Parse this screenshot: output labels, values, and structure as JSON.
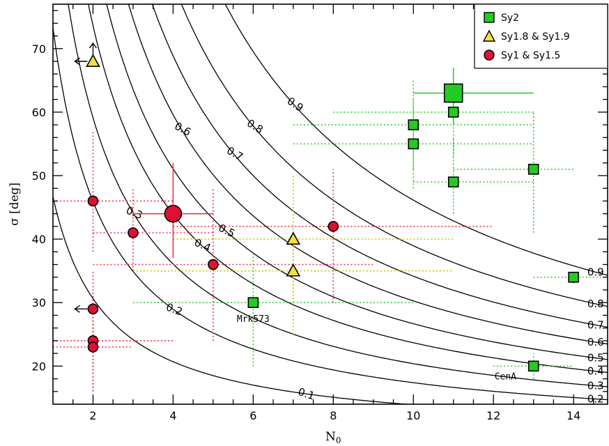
{
  "chart_data": {
    "type": "scatter",
    "title": "",
    "xlabel": "N",
    "xlabel_sub": "0",
    "ylabel": "σ [deg]",
    "xlim": [
      1,
      14.85
    ],
    "ylim": [
      14,
      77
    ],
    "xticks": [
      2,
      4,
      6,
      8,
      10,
      12,
      14
    ],
    "yticks": [
      20,
      30,
      40,
      50,
      60,
      70
    ],
    "grid": false,
    "legend_position": "top-right",
    "series": [
      {
        "name": "Sy2",
        "marker": "square",
        "color": "#22cc22",
        "errcolor": "#33cc33",
        "points": [
          {
            "x": 10,
            "y": 58,
            "xerr": [
              7,
              13
            ],
            "yerr": [
              51,
              65
            ]
          },
          {
            "x": 10,
            "y": 55,
            "xerr": [
              7,
              13
            ],
            "yerr": [
              48,
              62
            ]
          },
          {
            "x": 11,
            "y": 60,
            "xerr": [
              8,
              13
            ],
            "yerr": [
              53,
              67
            ]
          },
          {
            "x": 11,
            "y": 49,
            "xerr": [
              10,
              13
            ],
            "yerr": [
              44,
              56
            ]
          },
          {
            "x": 13,
            "y": 51,
            "xerr": [
              11,
              14
            ],
            "yerr": [
              41,
              60
            ]
          },
          {
            "x": 14,
            "y": 34,
            "xerr": [
              13,
              14.85
            ],
            "yerr": [
              33,
              35
            ]
          },
          {
            "x": 6,
            "y": 30,
            "xerr": [
              3,
              10
            ],
            "yerr": [
              20,
              38
            ]
          },
          {
            "x": 13,
            "y": 20,
            "xerr": [
              12,
              14
            ],
            "yerr": [
              18,
              22
            ]
          }
        ],
        "highlight": {
          "x": 11,
          "y": 63,
          "xerr": [
            10,
            13
          ],
          "yerr": [
            58,
            67
          ]
        }
      },
      {
        "name": "Sy1.8 & Sy1.9",
        "marker": "triangle",
        "color": "#f0e040",
        "errcolor": "#c8c800",
        "points": [
          {
            "x": 2,
            "y": 68,
            "limit": "upper-left"
          },
          {
            "x": 7,
            "y": 40,
            "xerr": [
              4,
              11
            ],
            "yerr": [
              30,
              50
            ]
          },
          {
            "x": 7,
            "y": 35,
            "xerr": [
              3,
              11
            ],
            "yerr": [
              25,
              42
            ]
          }
        ]
      },
      {
        "name": "Sy1 & Sy1.5",
        "marker": "circle",
        "color": "#dd1133",
        "errcolor": "#ee3344",
        "points": [
          {
            "x": 2,
            "y": 46,
            "xerr": [
              1,
              4
            ],
            "yerr": [
              38,
              57
            ]
          },
          {
            "x": 3,
            "y": 41,
            "xerr": [
              2,
              5
            ],
            "yerr": [
              35,
              48
            ]
          },
          {
            "x": 5,
            "y": 36,
            "xerr": [
              2,
              9
            ],
            "yerr": [
              24,
              48
            ]
          },
          {
            "x": 8,
            "y": 42,
            "xerr": [
              4,
              12
            ],
            "yerr": [
              30,
              51
            ]
          },
          {
            "x": 2,
            "y": 29,
            "limit": "left",
            "yerr": [
              22,
              35
            ]
          },
          {
            "x": 2,
            "y": 24,
            "xerr": [
              1,
              4
            ],
            "yerr": [
              16,
              32
            ]
          },
          {
            "x": 2,
            "y": 23,
            "xerr": [
              1,
              3
            ],
            "yerr": [
              16,
              30
            ]
          }
        ],
        "highlight": {
          "x": 4,
          "y": 44,
          "xerr": [
            3,
            5
          ],
          "yerr": [
            37,
            52
          ]
        }
      }
    ],
    "contours": [
      {
        "label": "0.1",
        "k": 8.2
      },
      {
        "label": "0.2",
        "k": 14
      },
      {
        "label": "0.3",
        "k": 19
      },
      {
        "label": "0.4",
        "k": 24.5
      },
      {
        "label": "0.5",
        "k": 29.5
      },
      {
        "label": "0.6",
        "k": 35.5
      },
      {
        "label": "0.7",
        "k": 42
      },
      {
        "label": "0.8",
        "k": 50
      },
      {
        "label": "0.9",
        "k": 62
      }
    ],
    "annotations": [
      "Mrk573",
      "CenA"
    ]
  }
}
